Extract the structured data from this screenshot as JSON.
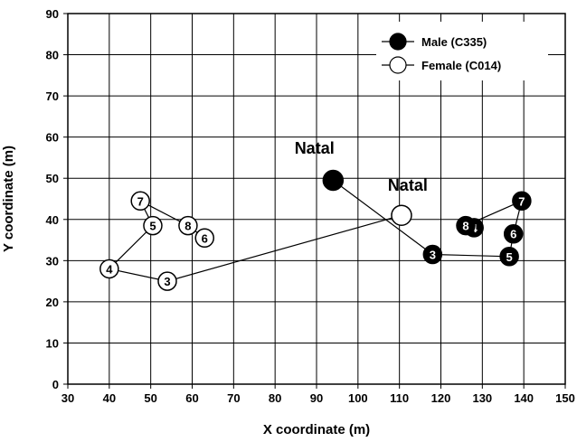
{
  "chart_data": {
    "type": "scatter",
    "xlabel": "X coordinate (m)",
    "ylabel": "Y coordinate (m)",
    "xlim": [
      30,
      150
    ],
    "ylim": [
      0,
      90
    ],
    "x_ticks": [
      30,
      40,
      50,
      60,
      70,
      80,
      90,
      100,
      110,
      120,
      130,
      140,
      150
    ],
    "y_ticks": [
      0,
      10,
      20,
      30,
      40,
      50,
      60,
      70,
      80,
      90
    ],
    "grid": true,
    "legend_position": "top-right",
    "series": [
      {
        "name": "Male (C335)",
        "marker": "filled-circle",
        "color": "#000000",
        "points": [
          {
            "label": "",
            "x": 94,
            "y": 49.5
          },
          {
            "label": "3",
            "x": 118,
            "y": 31.5
          },
          {
            "label": "4",
            "x": 128,
            "y": 38
          },
          {
            "label": "5",
            "x": 136.5,
            "y": 31
          },
          {
            "label": "6",
            "x": 137.5,
            "y": 36.5
          },
          {
            "label": "7",
            "x": 139.5,
            "y": 44.5
          },
          {
            "label": "8",
            "x": 126,
            "y": 38.5
          }
        ]
      },
      {
        "name": "Female (C014)",
        "marker": "open-circle",
        "color": "#000000",
        "points": [
          {
            "label": "",
            "x": 110.5,
            "y": 41
          },
          {
            "label": "3",
            "x": 54,
            "y": 25
          },
          {
            "label": "4",
            "x": 40,
            "y": 28
          },
          {
            "label": "5",
            "x": 50.5,
            "y": 38.5
          },
          {
            "label": "6",
            "x": 63,
            "y": 35.5
          },
          {
            "label": "7",
            "x": 47.5,
            "y": 44.5
          },
          {
            "label": "8",
            "x": 59,
            "y": 38.5
          }
        ]
      }
    ],
    "annotations": [
      {
        "text": "Natal",
        "x": 89.5,
        "y": 56
      },
      {
        "text": "Natal",
        "x": 112,
        "y": 47
      }
    ]
  }
}
